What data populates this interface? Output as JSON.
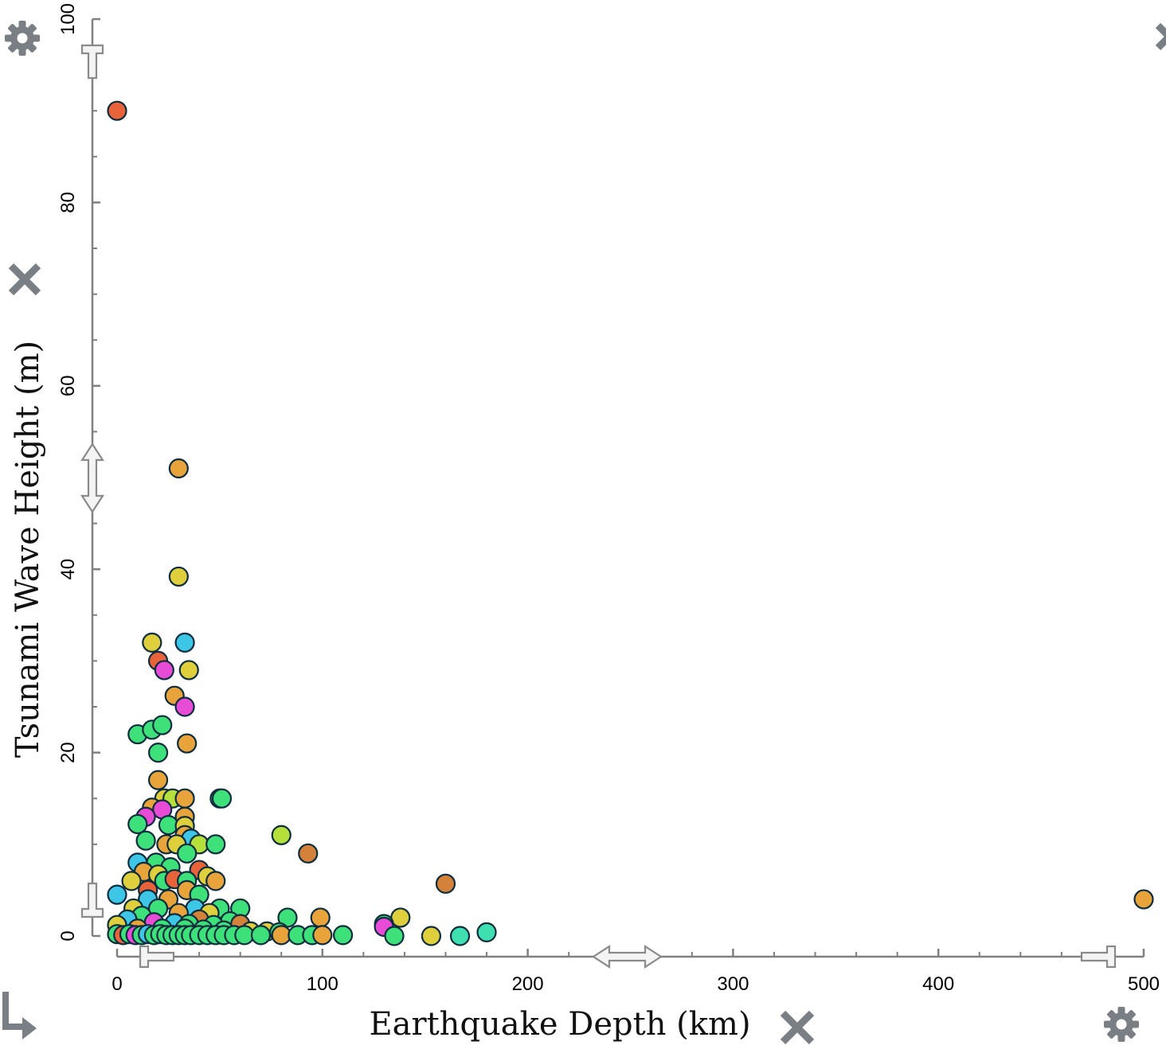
{
  "chart_data": {
    "type": "scatter",
    "xlabel": "Earthquake Depth (km)",
    "ylabel": "Tsunami Wave Height (m)",
    "xlim": [
      0,
      500
    ],
    "ylim": [
      0,
      100
    ],
    "x_ticks": [
      "0",
      "100",
      "200",
      "300",
      "400",
      "500"
    ],
    "y_ticks": [
      "0",
      "20",
      "40",
      "60",
      "80",
      "100"
    ],
    "grid": false,
    "legend": "none",
    "points": [
      {
        "x": 0,
        "y": 90,
        "color": "#e8633a"
      },
      {
        "x": 30,
        "y": 51,
        "color": "#e8a33a"
      },
      {
        "x": 30,
        "y": 39.2,
        "color": "#e0cf3c"
      },
      {
        "x": 17,
        "y": 32,
        "color": "#e0cf3c"
      },
      {
        "x": 33,
        "y": 32,
        "color": "#3ec6e6"
      },
      {
        "x": 20,
        "y": 30,
        "color": "#e8633a"
      },
      {
        "x": 23,
        "y": 29,
        "color": "#e84bd6"
      },
      {
        "x": 35,
        "y": 29,
        "color": "#e0cf3c"
      },
      {
        "x": 28,
        "y": 26.2,
        "color": "#e8a33a"
      },
      {
        "x": 33,
        "y": 25,
        "color": "#e84bd6"
      },
      {
        "x": 10,
        "y": 22,
        "color": "#3ee07a"
      },
      {
        "x": 17,
        "y": 22.5,
        "color": "#3ee07a"
      },
      {
        "x": 22,
        "y": 23,
        "color": "#3ee07a"
      },
      {
        "x": 34,
        "y": 21,
        "color": "#e8a33a"
      },
      {
        "x": 20,
        "y": 20,
        "color": "#3ee07a"
      },
      {
        "x": 20,
        "y": 17,
        "color": "#e8a33a"
      },
      {
        "x": 23,
        "y": 15,
        "color": "#e0cf3c"
      },
      {
        "x": 27,
        "y": 15,
        "color": "#b5e03c"
      },
      {
        "x": 33,
        "y": 15,
        "color": "#e8a33a"
      },
      {
        "x": 50,
        "y": 15,
        "color": "#3ee07a"
      },
      {
        "x": 51,
        "y": 15,
        "color": "#3ee07a"
      },
      {
        "x": 17,
        "y": 14,
        "color": "#e8a33a"
      },
      {
        "x": 22,
        "y": 13.8,
        "color": "#e84bd6"
      },
      {
        "x": 14,
        "y": 13,
        "color": "#e84bd6"
      },
      {
        "x": 33,
        "y": 13,
        "color": "#e8a33a"
      },
      {
        "x": 10,
        "y": 12.2,
        "color": "#3ee07a"
      },
      {
        "x": 25,
        "y": 12.1,
        "color": "#3ee07a"
      },
      {
        "x": 33,
        "y": 12,
        "color": "#e0cf3c"
      },
      {
        "x": 33,
        "y": 11,
        "color": "#e8a33a"
      },
      {
        "x": 36,
        "y": 10.6,
        "color": "#3ec6e6"
      },
      {
        "x": 80,
        "y": 11,
        "color": "#b5e03c"
      },
      {
        "x": 14,
        "y": 10.4,
        "color": "#3ee07a"
      },
      {
        "x": 24,
        "y": 10,
        "color": "#e8a33a"
      },
      {
        "x": 29,
        "y": 10,
        "color": "#e0cf3c"
      },
      {
        "x": 40,
        "y": 10,
        "color": "#b5e03c"
      },
      {
        "x": 48,
        "y": 10,
        "color": "#3ee07a"
      },
      {
        "x": 34,
        "y": 9,
        "color": "#3ee07a"
      },
      {
        "x": 93,
        "y": 9,
        "color": "#d4823a"
      },
      {
        "x": 10,
        "y": 8,
        "color": "#3ec6e6"
      },
      {
        "x": 19,
        "y": 8,
        "color": "#3ee07a"
      },
      {
        "x": 26,
        "y": 7.5,
        "color": "#3ee07a"
      },
      {
        "x": 40,
        "y": 7.2,
        "color": "#e8633a"
      },
      {
        "x": 13,
        "y": 7,
        "color": "#e8a33a"
      },
      {
        "x": 20,
        "y": 6.7,
        "color": "#e0cf3c"
      },
      {
        "x": 44,
        "y": 6.5,
        "color": "#e0cf3c"
      },
      {
        "x": 7,
        "y": 6,
        "color": "#e0cf3c"
      },
      {
        "x": 23,
        "y": 6,
        "color": "#3ee07a"
      },
      {
        "x": 28,
        "y": 6.2,
        "color": "#e8633a"
      },
      {
        "x": 34,
        "y": 6,
        "color": "#3ee07a"
      },
      {
        "x": 48,
        "y": 6,
        "color": "#e8a33a"
      },
      {
        "x": 160,
        "y": 5.7,
        "color": "#d4823a"
      },
      {
        "x": 15,
        "y": 5,
        "color": "#e8633a"
      },
      {
        "x": 34,
        "y": 5,
        "color": "#e8a33a"
      },
      {
        "x": 0,
        "y": 4.5,
        "color": "#3ec6e6"
      },
      {
        "x": 40,
        "y": 4.5,
        "color": "#3ee07a"
      },
      {
        "x": 500,
        "y": 4,
        "color": "#e8a33a"
      },
      {
        "x": 15,
        "y": 4,
        "color": "#3ec6e6"
      },
      {
        "x": 25,
        "y": 4,
        "color": "#e8a33a"
      },
      {
        "x": 8,
        "y": 3,
        "color": "#e0cf3c"
      },
      {
        "x": 20,
        "y": 3,
        "color": "#3ee07a"
      },
      {
        "x": 38,
        "y": 3,
        "color": "#3ec6e6"
      },
      {
        "x": 50,
        "y": 3,
        "color": "#3ee07a"
      },
      {
        "x": 60,
        "y": 3,
        "color": "#3ee07a"
      },
      {
        "x": 30,
        "y": 2.5,
        "color": "#e8a33a"
      },
      {
        "x": 45,
        "y": 2.5,
        "color": "#e0cf3c"
      },
      {
        "x": 12,
        "y": 2.2,
        "color": "#3ee07a"
      },
      {
        "x": 83,
        "y": 2,
        "color": "#3ee07a"
      },
      {
        "x": 99,
        "y": 2,
        "color": "#e8a33a"
      },
      {
        "x": 138,
        "y": 2,
        "color": "#e0cf3c"
      },
      {
        "x": 5,
        "y": 1.8,
        "color": "#3ec6e6"
      },
      {
        "x": 40,
        "y": 1.8,
        "color": "#d4823a"
      },
      {
        "x": 55,
        "y": 1.6,
        "color": "#3ee07a"
      },
      {
        "x": 0,
        "y": 1.2,
        "color": "#e0cf3c"
      },
      {
        "x": 18,
        "y": 1.5,
        "color": "#e84bd6"
      },
      {
        "x": 28,
        "y": 1.4,
        "color": "#3ec6e6"
      },
      {
        "x": 35,
        "y": 1.3,
        "color": "#3ee07a"
      },
      {
        "x": 47,
        "y": 1.2,
        "color": "#3ee07a"
      },
      {
        "x": 60,
        "y": 1.3,
        "color": "#d4823a"
      },
      {
        "x": 130,
        "y": 1.3,
        "color": "#3ee07a"
      },
      {
        "x": 130,
        "y": 1,
        "color": "#e84bd6"
      },
      {
        "x": 10,
        "y": 0.8,
        "color": "#e8a33a"
      },
      {
        "x": 22,
        "y": 0.8,
        "color": "#3ee07a"
      },
      {
        "x": 33,
        "y": 0.8,
        "color": "#3ee07a"
      },
      {
        "x": 42,
        "y": 0.7,
        "color": "#3ee07a"
      },
      {
        "x": 52,
        "y": 0.6,
        "color": "#3ee07a"
      },
      {
        "x": 65,
        "y": 0.5,
        "color": "#e0cf3c"
      },
      {
        "x": 73,
        "y": 0.5,
        "color": "#e0cf3c"
      },
      {
        "x": 79,
        "y": 0.4,
        "color": "#3ee07a"
      },
      {
        "x": 180,
        "y": 0.4,
        "color": "#3ee0b0"
      },
      {
        "x": 0,
        "y": 0.2,
        "color": "#3ee07a"
      },
      {
        "x": 3,
        "y": 0.1,
        "color": "#e8633a"
      },
      {
        "x": 6,
        "y": 0.2,
        "color": "#3ee07a"
      },
      {
        "x": 9,
        "y": 0.1,
        "color": "#e84bd6"
      },
      {
        "x": 12,
        "y": 0.1,
        "color": "#3ee07a"
      },
      {
        "x": 15,
        "y": 0.2,
        "color": "#3ec6e6"
      },
      {
        "x": 18,
        "y": 0.1,
        "color": "#3ee07a"
      },
      {
        "x": 21,
        "y": 0.2,
        "color": "#3ee07a"
      },
      {
        "x": 24,
        "y": 0.1,
        "color": "#3ee07a"
      },
      {
        "x": 27,
        "y": 0.1,
        "color": "#3ee07a"
      },
      {
        "x": 30,
        "y": 0.1,
        "color": "#3ee07a"
      },
      {
        "x": 33,
        "y": 0.1,
        "color": "#3ee07a"
      },
      {
        "x": 36,
        "y": 0.1,
        "color": "#3ee07a"
      },
      {
        "x": 40,
        "y": 0.1,
        "color": "#3ee07a"
      },
      {
        "x": 44,
        "y": 0.1,
        "color": "#3ee07a"
      },
      {
        "x": 48,
        "y": 0.1,
        "color": "#3ee07a"
      },
      {
        "x": 52,
        "y": 0.1,
        "color": "#3ee07a"
      },
      {
        "x": 57,
        "y": 0.1,
        "color": "#3ee07a"
      },
      {
        "x": 62,
        "y": 0.1,
        "color": "#3ee07a"
      },
      {
        "x": 70,
        "y": 0.1,
        "color": "#3ee07a"
      },
      {
        "x": 80,
        "y": 0.1,
        "color": "#e8a33a"
      },
      {
        "x": 88,
        "y": 0.1,
        "color": "#3ee07a"
      },
      {
        "x": 95,
        "y": 0.1,
        "color": "#3ee07a"
      },
      {
        "x": 100,
        "y": 0.1,
        "color": "#e8a33a"
      },
      {
        "x": 110,
        "y": 0.1,
        "color": "#3ee07a"
      },
      {
        "x": 135,
        "y": 0,
        "color": "#3ee07a"
      },
      {
        "x": 153,
        "y": 0,
        "color": "#e0cf3c"
      },
      {
        "x": 167,
        "y": 0,
        "color": "#3ee0b0"
      }
    ]
  },
  "controls": {
    "icons": [
      "gear-icon",
      "close-icon",
      "resize-arrow-icon",
      "range-handle"
    ]
  }
}
